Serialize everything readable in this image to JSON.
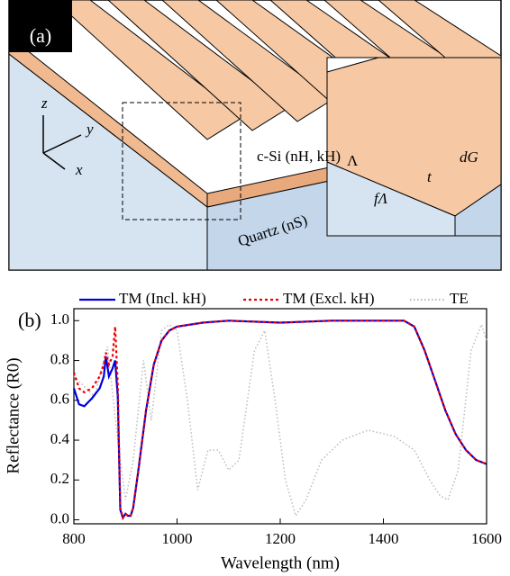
{
  "diagram": {
    "panel_label": "(a)",
    "axis_z": "z",
    "axis_y": "y",
    "axis_x": "x",
    "material_top": "c-Si (nH, kH)",
    "material_bottom": "Quartz (nS)",
    "period": "Λ",
    "fill_period": "fΛ",
    "thickness": "t",
    "depth": "dG"
  },
  "chart_data": {
    "type": "line",
    "panel_label": "(b)",
    "xlabel": "Wavelength (nm)",
    "ylabel": "Reflectance (R0)",
    "xlim": [
      800,
      1600
    ],
    "xticks": [
      800,
      1000,
      1200,
      1400,
      1600
    ],
    "ylim": [
      -0.02,
      1.06
    ],
    "yticks": [
      {
        "value": 0,
        "label": "0.0"
      },
      0.2,
      0.4,
      0.6,
      0.8,
      {
        "value": 1,
        "label": "1.0"
      }
    ],
    "series": [
      {
        "name": "TM (Incl. kH)",
        "color": "#0000dd",
        "style": "solid",
        "x": [
          800,
          810,
          820,
          835,
          850,
          858,
          862,
          868,
          875,
          880,
          885,
          890,
          895,
          900,
          905,
          910,
          915,
          925,
          940,
          955,
          970,
          985,
          1000,
          1050,
          1100,
          1200,
          1300,
          1400,
          1440,
          1460,
          1480,
          1500,
          1520,
          1540,
          1560,
          1580,
          1600
        ],
        "values": [
          0.66,
          0.58,
          0.57,
          0.61,
          0.66,
          0.72,
          0.82,
          0.72,
          0.76,
          0.8,
          0.62,
          0.05,
          0.01,
          0.03,
          0.02,
          0.02,
          0.06,
          0.25,
          0.55,
          0.78,
          0.9,
          0.95,
          0.97,
          0.99,
          1.0,
          0.99,
          1.0,
          1.0,
          1.0,
          0.97,
          0.85,
          0.7,
          0.55,
          0.43,
          0.35,
          0.3,
          0.28
        ]
      },
      {
        "name": "TM (Excl. kH)",
        "color": "#ee0000",
        "style": "dotted",
        "x": [
          800,
          810,
          820,
          835,
          850,
          858,
          862,
          868,
          875,
          880,
          885,
          890,
          895,
          900,
          905,
          910,
          915,
          925,
          940,
          955,
          970,
          985,
          1000,
          1050,
          1100,
          1200,
          1300,
          1400,
          1440,
          1460,
          1480,
          1500,
          1520,
          1540,
          1560,
          1580,
          1600
        ],
        "values": [
          0.74,
          0.66,
          0.64,
          0.66,
          0.72,
          0.78,
          0.84,
          0.78,
          0.82,
          0.97,
          0.68,
          0.06,
          0.01,
          0.03,
          0.02,
          0.02,
          0.06,
          0.25,
          0.55,
          0.78,
          0.9,
          0.95,
          0.97,
          0.99,
          1.0,
          0.99,
          1.0,
          1.0,
          1.0,
          0.97,
          0.85,
          0.7,
          0.55,
          0.43,
          0.35,
          0.3,
          0.28
        ]
      },
      {
        "name": "TE",
        "color": "#bbbbbb",
        "style": "dotted",
        "x": [
          800,
          840,
          865,
          885,
          900,
          915,
          935,
          950,
          970,
          985,
          1000,
          1020,
          1040,
          1060,
          1080,
          1100,
          1120,
          1150,
          1170,
          1190,
          1210,
          1230,
          1250,
          1280,
          1320,
          1370,
          1420,
          1460,
          1490,
          1510,
          1525,
          1545,
          1570,
          1590,
          1600
        ],
        "values": [
          0.72,
          0.62,
          0.87,
          0.4,
          0.1,
          0.3,
          0.8,
          0.5,
          0.95,
          0.98,
          0.95,
          0.6,
          0.15,
          0.35,
          0.35,
          0.25,
          0.3,
          0.85,
          0.95,
          0.6,
          0.2,
          0.02,
          0.1,
          0.3,
          0.4,
          0.45,
          0.42,
          0.35,
          0.2,
          0.12,
          0.1,
          0.25,
          0.85,
          0.98,
          0.9
        ]
      }
    ]
  }
}
